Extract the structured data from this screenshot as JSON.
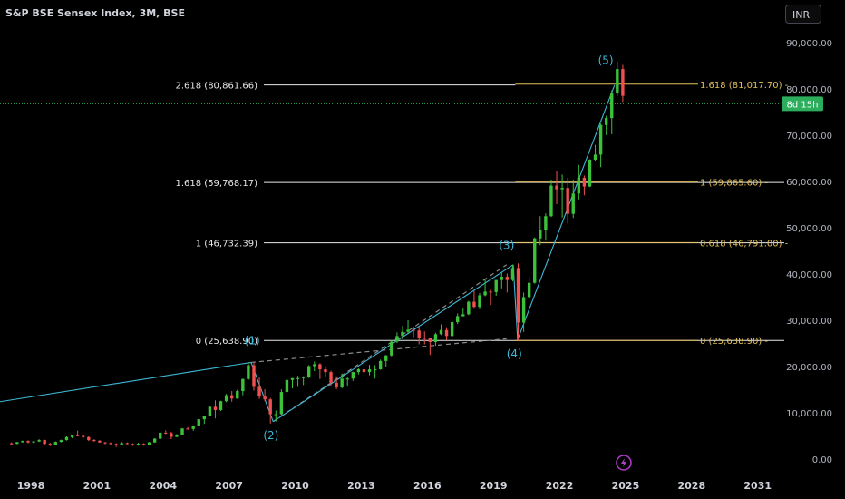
{
  "header": {
    "title": "S&P BSE Sensex Index, 3M, BSE",
    "currency_button": "INR"
  },
  "price_badge": "8d 15h",
  "colors": {
    "up": "#3cc13b",
    "down": "#f0504f",
    "fib_left": "#e8e8e8",
    "fib_right": "#e3c15a",
    "wave_line": "#3fb8d6",
    "dashed": "#8a8a8a",
    "badge": "#2bad5c",
    "icon": "#b23cc9"
  },
  "chart_data": {
    "type": "candlestick",
    "title": "S&P BSE Sensex Index, 3M, BSE",
    "y_ticks": [
      "0.00",
      "10,000.00",
      "20,000.00",
      "30,000.00",
      "40,000.00",
      "50,000.00",
      "60,000.00",
      "70,000.00",
      "80,000.00",
      "90,000.00"
    ],
    "x_ticks": [
      "1998",
      "2001",
      "2004",
      "2007",
      "2010",
      "2013",
      "2016",
      "2019",
      "2022",
      "2025",
      "2028",
      "2031"
    ],
    "x_range": [
      1996.6,
      2032.0
    ],
    "y_range": [
      -2000,
      96000
    ],
    "current_price": 76800,
    "fib_left": [
      {
        "label": "2.618 (80,861.66)",
        "value": 80861.66
      },
      {
        "label": "1.618 (59,768.17)",
        "value": 59768.17
      },
      {
        "label": "1 (46,732.39)",
        "value": 46732.39
      },
      {
        "label": "0 (25,638.90)",
        "value": 25638.9
      }
    ],
    "fib_right": [
      {
        "label": "1.618 (81,017.70)",
        "value": 81017.7
      },
      {
        "label": "1 (59,865.60)",
        "value": 59865.6
      },
      {
        "label": "0.618 (46,791.00)",
        "value": 46791.0
      },
      {
        "label": "0 (25,638.90)",
        "value": 25638.9
      }
    ],
    "wave_labels": [
      {
        "label": "(1)",
        "x": 2008.05,
        "y": 24800
      },
      {
        "label": "(2)",
        "x": 2008.9,
        "y": 4300
      },
      {
        "label": "(3)",
        "x": 2019.6,
        "y": 45400
      },
      {
        "label": "(4)",
        "x": 2019.95,
        "y": 22000
      },
      {
        "label": "(5)",
        "x": 2024.1,
        "y": 85400
      }
    ],
    "wave_lines": [
      {
        "x1": 1996.6,
        "y1": 12400,
        "x2": 2008.0,
        "y2": 20900
      },
      {
        "x1": 2008.0,
        "y1": 20900,
        "x2": 2009.0,
        "y2": 8100
      },
      {
        "x1": 2009.0,
        "y1": 8100,
        "x2": 2019.9,
        "y2": 42000
      },
      {
        "x1": 2019.9,
        "y1": 42000,
        "x2": 2020.1,
        "y2": 25800
      },
      {
        "x1": 2020.1,
        "y1": 25800,
        "x2": 2024.5,
        "y2": 80800
      }
    ],
    "dashed_lines": [
      {
        "x1": 2008.0,
        "y1": 20900,
        "x2": 2019.6,
        "y2": 26000
      },
      {
        "x1": 2009.0,
        "y1": 8100,
        "x2": 2019.6,
        "y2": 42000
      }
    ],
    "fib_left_range": [
      2008.0,
      2020.0
    ],
    "fib_right_range": [
      2020.0,
      2031.3
    ],
    "fib_left_top_end": 2020.0,
    "candles": [
      [
        1997.0,
        3400,
        3600,
        3100,
        3300
      ],
      [
        1997.25,
        3300,
        3700,
        3200,
        3650
      ],
      [
        1997.5,
        3650,
        4000,
        3500,
        3900
      ],
      [
        1997.75,
        3900,
        4050,
        3400,
        3600
      ],
      [
        1998.0,
        3600,
        3900,
        3400,
        3800
      ],
      [
        1998.25,
        3800,
        4300,
        3700,
        4100
      ],
      [
        1998.5,
        4100,
        4200,
        3100,
        3300
      ],
      [
        1998.75,
        3300,
        3500,
        2800,
        3050
      ],
      [
        1999.0,
        3050,
        3800,
        3000,
        3700
      ],
      [
        1999.25,
        3700,
        4200,
        3600,
        4100
      ],
      [
        1999.5,
        4100,
        4900,
        4000,
        4750
      ],
      [
        1999.75,
        4750,
        5300,
        4500,
        5150
      ],
      [
        2000.0,
        5150,
        6150,
        4900,
        5000
      ],
      [
        2000.25,
        5000,
        5100,
        4300,
        4750
      ],
      [
        2000.5,
        4750,
        4900,
        3900,
        4100
      ],
      [
        2000.75,
        4100,
        4300,
        3700,
        3950
      ],
      [
        2001.0,
        3950,
        4100,
        3500,
        3600
      ],
      [
        2001.25,
        3600,
        3700,
        3200,
        3450
      ],
      [
        2001.5,
        3450,
        3600,
        3100,
        3250
      ],
      [
        2001.75,
        3250,
        3400,
        2600,
        3150
      ],
      [
        2002.0,
        3150,
        3700,
        3050,
        3450
      ],
      [
        2002.25,
        3450,
        3600,
        3150,
        3250
      ],
      [
        2002.5,
        3250,
        3400,
        2850,
        3000
      ],
      [
        2002.75,
        3000,
        3500,
        2900,
        3300
      ],
      [
        2003.0,
        3300,
        3400,
        2900,
        3050
      ],
      [
        2003.25,
        3050,
        3700,
        3000,
        3600
      ],
      [
        2003.5,
        3600,
        4500,
        3500,
        4400
      ],
      [
        2003.75,
        4400,
        5800,
        4300,
        5700
      ],
      [
        2004.0,
        5700,
        6200,
        5400,
        5600
      ],
      [
        2004.25,
        5600,
        5900,
        4300,
        4800
      ],
      [
        2004.5,
        4800,
        5400,
        4700,
        5200
      ],
      [
        2004.75,
        5200,
        6700,
        5100,
        6600
      ],
      [
        2005.0,
        6600,
        6900,
        6300,
        6500
      ],
      [
        2005.25,
        6500,
        7300,
        6100,
        7200
      ],
      [
        2005.5,
        7200,
        8700,
        7100,
        8600
      ],
      [
        2005.75,
        8600,
        9400,
        7600,
        9300
      ],
      [
        2006.0,
        9300,
        11500,
        9200,
        11300
      ],
      [
        2006.25,
        11300,
        12700,
        8800,
        10600
      ],
      [
        2006.5,
        10600,
        12600,
        10400,
        12500
      ],
      [
        2006.75,
        12500,
        14100,
        12300,
        13800
      ],
      [
        2007.0,
        13800,
        14700,
        12400,
        13100
      ],
      [
        2007.25,
        13100,
        15000,
        13000,
        14700
      ],
      [
        2007.5,
        14700,
        17400,
        13800,
        17300
      ],
      [
        2007.75,
        17300,
        20900,
        17100,
        20300
      ],
      [
        2008.0,
        20300,
        20900,
        14800,
        15600
      ],
      [
        2008.25,
        15600,
        17700,
        13000,
        13500
      ],
      [
        2008.5,
        13500,
        15100,
        12500,
        12900
      ],
      [
        2008.75,
        12900,
        13200,
        7700,
        9700
      ],
      [
        2009.0,
        9700,
        10500,
        8100,
        9700
      ],
      [
        2009.25,
        9700,
        15100,
        9500,
        14500
      ],
      [
        2009.5,
        14500,
        17300,
        13200,
        17100
      ],
      [
        2009.75,
        17100,
        17500,
        15300,
        17500
      ],
      [
        2010.0,
        17500,
        18000,
        15600,
        17500
      ],
      [
        2010.25,
        17500,
        17900,
        16000,
        17700
      ],
      [
        2010.5,
        17700,
        20300,
        17500,
        20100
      ],
      [
        2010.75,
        20100,
        21100,
        19000,
        20500
      ],
      [
        2011.0,
        20500,
        20700,
        17300,
        19400
      ],
      [
        2011.25,
        19400,
        19800,
        17800,
        18800
      ],
      [
        2011.5,
        18800,
        19100,
        15800,
        16500
      ],
      [
        2011.75,
        16500,
        17900,
        15100,
        15500
      ],
      [
        2012.0,
        15500,
        18500,
        15300,
        17400
      ],
      [
        2012.25,
        17400,
        17700,
        15800,
        17400
      ],
      [
        2012.5,
        17400,
        18900,
        16900,
        18800
      ],
      [
        2012.75,
        18800,
        19600,
        18300,
        19400
      ],
      [
        2013.0,
        19400,
        20200,
        18500,
        18800
      ],
      [
        2013.25,
        18800,
        20400,
        18100,
        19400
      ],
      [
        2013.5,
        19400,
        20300,
        17400,
        19400
      ],
      [
        2013.75,
        19400,
        21500,
        19300,
        21200
      ],
      [
        2014.0,
        21200,
        22500,
        19900,
        22400
      ],
      [
        2014.25,
        22400,
        25700,
        22200,
        25400
      ],
      [
        2014.5,
        25400,
        27400,
        25100,
        26600
      ],
      [
        2014.75,
        26600,
        28800,
        25900,
        27500
      ],
      [
        2015.0,
        27500,
        30000,
        27200,
        27950
      ],
      [
        2015.25,
        27950,
        28600,
        26400,
        27800
      ],
      [
        2015.5,
        27800,
        28600,
        24800,
        26200
      ],
      [
        2015.75,
        26200,
        27600,
        24800,
        26100
      ],
      [
        2016.0,
        26100,
        26200,
        22500,
        25300
      ],
      [
        2016.25,
        25300,
        27300,
        24500,
        27000
      ],
      [
        2016.5,
        27000,
        29100,
        26800,
        27900
      ],
      [
        2016.75,
        27900,
        28500,
        25700,
        26600
      ],
      [
        2017.0,
        26600,
        29900,
        26400,
        29600
      ],
      [
        2017.25,
        29600,
        31500,
        29200,
        30900
      ],
      [
        2017.5,
        30900,
        32700,
        30800,
        31300
      ],
      [
        2017.75,
        31300,
        34200,
        31100,
        34000
      ],
      [
        2018.0,
        34000,
        36400,
        32500,
        32900
      ],
      [
        2018.25,
        32900,
        35900,
        32400,
        35400
      ],
      [
        2018.5,
        35400,
        38900,
        35200,
        36200
      ],
      [
        2018.75,
        36200,
        36600,
        33300,
        36100
      ],
      [
        2019.0,
        36100,
        38700,
        35300,
        38700
      ],
      [
        2019.25,
        38700,
        40300,
        36900,
        39400
      ],
      [
        2019.5,
        39400,
        40100,
        36000,
        38700
      ],
      [
        2019.75,
        38700,
        42000,
        38400,
        41300
      ],
      [
        2020.0,
        41300,
        42300,
        25600,
        29500
      ],
      [
        2020.25,
        29500,
        36000,
        27500,
        35000
      ],
      [
        2020.5,
        35000,
        39400,
        34900,
        38100
      ],
      [
        2020.75,
        38100,
        47900,
        37900,
        47700
      ],
      [
        2021.0,
        47700,
        52500,
        46200,
        49500
      ],
      [
        2021.25,
        49500,
        53100,
        47200,
        52500
      ],
      [
        2021.5,
        52500,
        60400,
        52300,
        59100
      ],
      [
        2021.75,
        59100,
        62200,
        55100,
        58300
      ],
      [
        2022.0,
        58300,
        61500,
        52200,
        58600
      ],
      [
        2022.25,
        58600,
        60800,
        50900,
        53000
      ],
      [
        2022.5,
        53000,
        60400,
        52100,
        57400
      ],
      [
        2022.75,
        57400,
        63600,
        56100,
        60800
      ],
      [
        2023.0,
        60800,
        61300,
        57000,
        58900
      ],
      [
        2023.25,
        58900,
        64800,
        58800,
        64700
      ],
      [
        2023.5,
        64700,
        67900,
        64500,
        65800
      ],
      [
        2023.75,
        65800,
        72500,
        63100,
        72200
      ],
      [
        2024.0,
        72200,
        74200,
        70000,
        73700
      ],
      [
        2024.25,
        73700,
        79700,
        70200,
        79000
      ],
      [
        2024.5,
        79000,
        85900,
        78500,
        84300
      ],
      [
        2024.75,
        84300,
        85200,
        77200,
        78500
      ]
    ]
  }
}
